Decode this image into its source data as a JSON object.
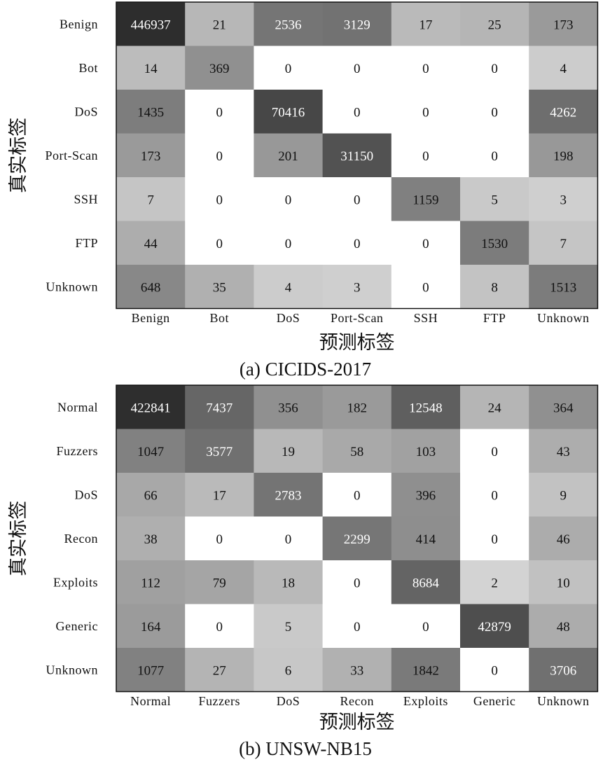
{
  "chart_data": [
    {
      "type": "heatmap",
      "caption": "(a) CICIDS-2017",
      "xlabel": "预测标签",
      "ylabel": "真实标签",
      "x_categories": [
        "Benign",
        "Bot",
        "DoS",
        "Port-Scan",
        "SSH",
        "FTP",
        "Unknown"
      ],
      "y_categories": [
        "Benign",
        "Bot",
        "DoS",
        "Port-Scan",
        "SSH",
        "FTP",
        "Unknown"
      ],
      "values": [
        [
          446937,
          21,
          2536,
          3129,
          17,
          25,
          173
        ],
        [
          14,
          369,
          0,
          0,
          0,
          0,
          4
        ],
        [
          1435,
          0,
          70416,
          0,
          0,
          0,
          4262
        ],
        [
          173,
          0,
          201,
          31150,
          0,
          0,
          198
        ],
        [
          7,
          0,
          0,
          0,
          1159,
          5,
          3
        ],
        [
          44,
          0,
          0,
          0,
          0,
          1530,
          7
        ],
        [
          648,
          35,
          4,
          3,
          0,
          8,
          1513
        ]
      ]
    },
    {
      "type": "heatmap",
      "caption": "(b) UNSW-NB15",
      "xlabel": "预测标签",
      "ylabel": "真实标签",
      "x_categories": [
        "Normal",
        "Fuzzers",
        "DoS",
        "Recon",
        "Exploits",
        "Generic",
        "Unknown"
      ],
      "y_categories": [
        "Normal",
        "Fuzzers",
        "DoS",
        "Recon",
        "Exploits",
        "Generic",
        "Unknown"
      ],
      "values": [
        [
          422841,
          7437,
          356,
          182,
          12548,
          24,
          364
        ],
        [
          1047,
          3577,
          19,
          58,
          103,
          0,
          43
        ],
        [
          66,
          17,
          2783,
          0,
          396,
          0,
          9
        ],
        [
          38,
          0,
          0,
          2299,
          414,
          0,
          46
        ],
        [
          112,
          79,
          18,
          0,
          8684,
          2,
          10
        ],
        [
          164,
          0,
          5,
          0,
          0,
          42879,
          48
        ],
        [
          1077,
          27,
          6,
          33,
          1842,
          0,
          3706
        ]
      ]
    }
  ]
}
